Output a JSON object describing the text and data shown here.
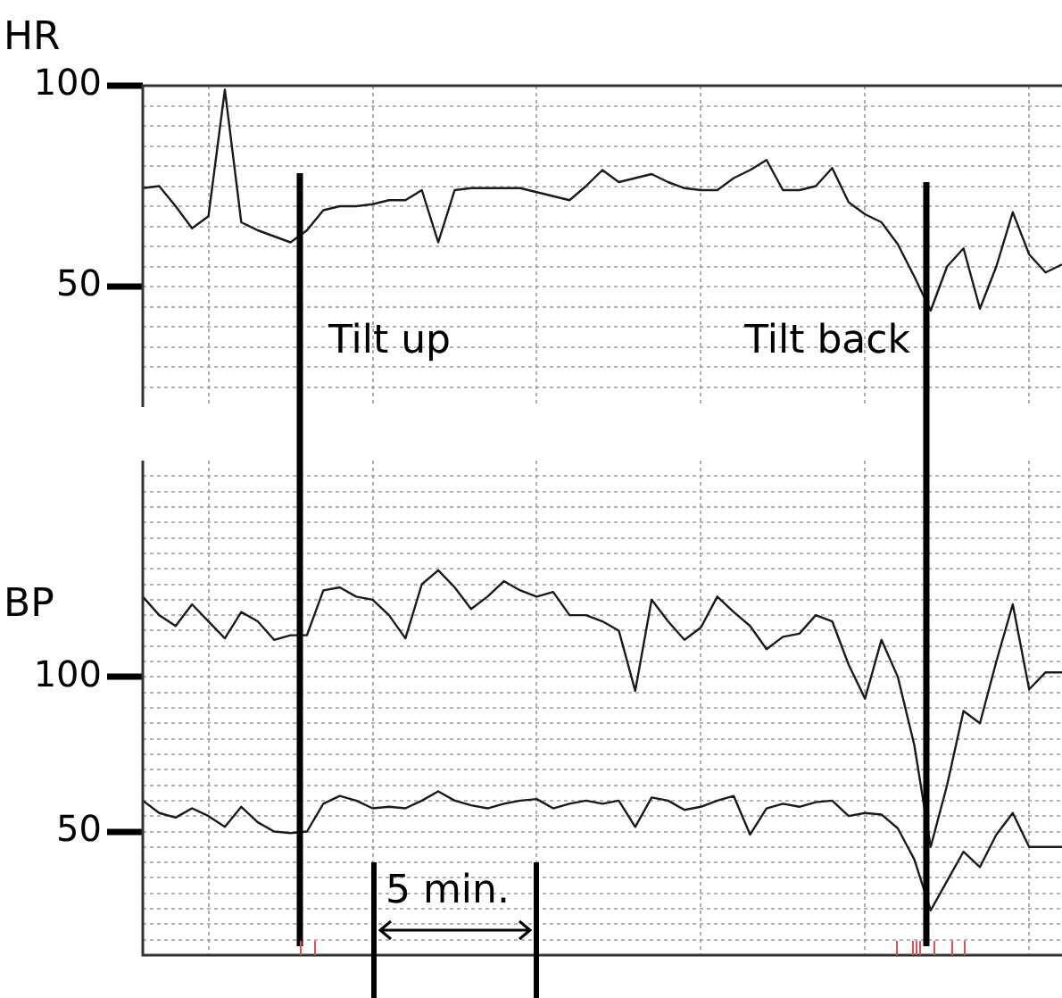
{
  "chart_data": [
    {
      "type": "line",
      "ylabel": "HR",
      "categories": [
        null,
        null,
        null,
        null,
        null,
        null,
        null,
        null,
        null,
        null,
        null,
        null,
        null,
        null,
        null,
        null,
        null,
        null,
        null,
        null,
        null,
        null,
        null,
        null,
        null,
        null,
        null,
        null,
        null,
        null,
        null,
        null,
        null,
        null,
        null,
        null,
        null,
        null,
        null,
        null,
        null,
        null,
        null,
        null,
        null,
        null,
        null,
        null,
        null,
        null,
        null,
        null,
        null,
        null,
        null,
        null,
        null
      ],
      "ylim": [
        20,
        100
      ],
      "yticks": [
        {
          "value": 25,
          "label": null
        },
        {
          "value": 30,
          "label": null
        },
        {
          "value": 35,
          "label": null
        },
        {
          "value": 40,
          "label": null
        },
        {
          "value": 45,
          "label": null
        },
        {
          "value": 50,
          "label": "50"
        },
        {
          "value": 55,
          "label": null
        },
        {
          "value": 60,
          "label": null
        },
        {
          "value": 65,
          "label": null
        },
        {
          "value": 70,
          "label": null
        },
        {
          "value": 75,
          "label": null
        },
        {
          "value": 80,
          "label": null
        },
        {
          "value": 85,
          "label": null
        },
        {
          "value": 90,
          "label": null
        },
        {
          "value": 95,
          "label": null
        },
        {
          "value": 100,
          "label": "100"
        }
      ],
      "tick_labels": "y",
      "grid": true,
      "legend": false,
      "marker": "none",
      "line_style": "solid",
      "series": [
        {
          "color": "#1a1a1a",
          "values": [
            74.5,
            75,
            70,
            64.5,
            67.5,
            99,
            66,
            64,
            62.5,
            61,
            64,
            69,
            70,
            70,
            70.5,
            71.5,
            71.5,
            74,
            61,
            74,
            74.5,
            74.5,
            74.5,
            74.5,
            73.5,
            72.5,
            71.5,
            75,
            79,
            76,
            77,
            78,
            76,
            74.5,
            74,
            74,
            77,
            79,
            81.5,
            74,
            74,
            75,
            79.5,
            71,
            68,
            66,
            60.5,
            52.5,
            44,
            55,
            59.5,
            44.5,
            55,
            68.5,
            58,
            53.5,
            55.5
          ]
        }
      ],
      "annotations": [
        "Tilt up",
        "Tilt back"
      ]
    },
    {
      "type": "line",
      "ylabel": "BP",
      "categories": [
        null,
        null,
        null,
        null,
        null,
        null,
        null,
        null,
        null,
        null,
        null,
        null,
        null,
        null,
        null,
        null,
        null,
        null,
        null,
        null,
        null,
        null,
        null,
        null,
        null,
        null,
        null,
        null,
        null,
        null,
        null,
        null,
        null,
        null,
        null,
        null,
        null,
        null,
        null,
        null,
        null,
        null,
        null,
        null,
        null,
        null,
        null,
        null,
        null,
        null,
        null,
        null,
        null,
        null,
        null,
        null,
        null
      ],
      "ylim": [
        10,
        170
      ],
      "yticks": [
        {
          "value": 15,
          "label": null
        },
        {
          "value": 20,
          "label": null
        },
        {
          "value": 25,
          "label": null
        },
        {
          "value": 30,
          "label": null
        },
        {
          "value": 35,
          "label": null
        },
        {
          "value": 40,
          "label": null
        },
        {
          "value": 45,
          "label": null
        },
        {
          "value": 50,
          "label": "50"
        },
        {
          "value": 55,
          "label": null
        },
        {
          "value": 60,
          "label": null
        },
        {
          "value": 65,
          "label": null
        },
        {
          "value": 70,
          "label": null
        },
        {
          "value": 75,
          "label": null
        },
        {
          "value": 80,
          "label": null
        },
        {
          "value": 85,
          "label": null
        },
        {
          "value": 90,
          "label": null
        },
        {
          "value": 95,
          "label": null
        },
        {
          "value": 100,
          "label": "100"
        },
        {
          "value": 105,
          "label": null
        },
        {
          "value": 110,
          "label": null
        },
        {
          "value": 115,
          "label": null
        },
        {
          "value": 120,
          "label": null
        },
        {
          "value": 125,
          "label": null
        },
        {
          "value": 130,
          "label": null
        },
        {
          "value": 135,
          "label": null
        },
        {
          "value": 140,
          "label": null
        },
        {
          "value": 145,
          "label": null
        },
        {
          "value": 150,
          "label": null
        },
        {
          "value": 155,
          "label": null
        },
        {
          "value": 160,
          "label": null
        },
        {
          "value": 165,
          "label": null
        }
      ],
      "tick_labels": "y",
      "grid": true,
      "legend": false,
      "marker": "none",
      "line_style": "solid",
      "series": [
        {
          "color": "#1a1a1a",
          "values": [
            126,
            120,
            116.5,
            123.5,
            118,
            112.5,
            121,
            118,
            112,
            113.5,
            113.5,
            128,
            129,
            126,
            125,
            120,
            112.5,
            130,
            134.5,
            129,
            122,
            126,
            131,
            128,
            126,
            127.5,
            120,
            120,
            118,
            115,
            95.5,
            125,
            118,
            112,
            116,
            126,
            121,
            116.5,
            109,
            113,
            114,
            120,
            118,
            104,
            93,
            112,
            100,
            78,
            45,
            65,
            89,
            85,
            105,
            123.5,
            96,
            101.5,
            101.5
          ]
        },
        {
          "color": "#1a1a1a",
          "values": [
            60,
            56,
            54.5,
            57.5,
            55,
            51.5,
            58,
            53,
            50,
            49.5,
            50,
            59,
            61.5,
            60,
            57.5,
            58,
            57.5,
            60,
            63,
            60,
            58.5,
            57.5,
            59,
            60,
            60.5,
            57.5,
            59,
            60,
            59,
            60,
            51.5,
            61,
            60,
            57,
            58,
            60,
            61.5,
            49,
            57.5,
            59,
            58,
            59.5,
            60,
            55,
            56,
            55.5,
            51,
            41,
            24.5,
            34,
            43.5,
            38.5,
            49,
            56,
            45,
            45,
            45
          ]
        }
      ],
      "annotations": [
        "5 min."
      ]
    }
  ]
}
